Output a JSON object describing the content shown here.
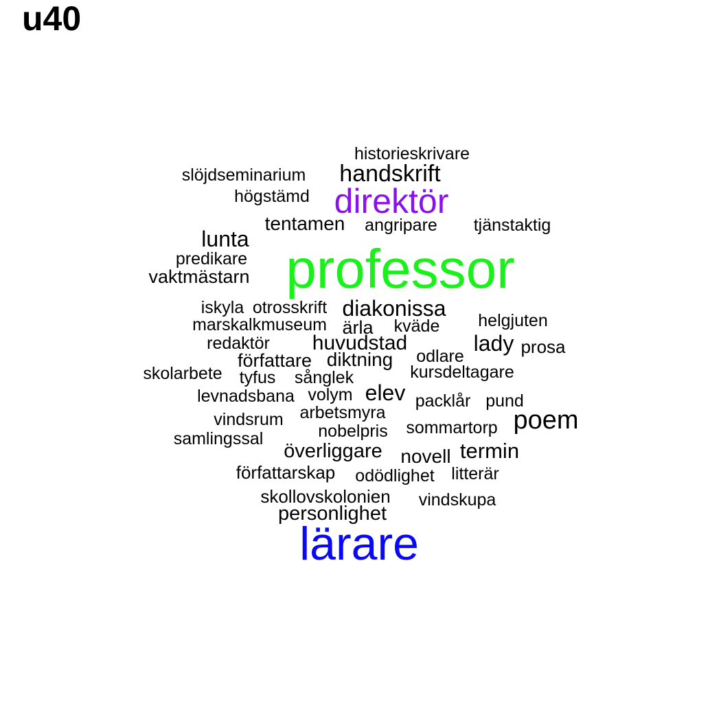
{
  "panel_label": "u40",
  "words": [
    {
      "text": "historieskrivare",
      "color": "#000000"
    },
    {
      "text": "slöjdseminarium",
      "color": "#000000"
    },
    {
      "text": "handskrift",
      "color": "#000000"
    },
    {
      "text": "högstämd",
      "color": "#000000"
    },
    {
      "text": "direktör",
      "color": "#8b10ee"
    },
    {
      "text": "tentamen",
      "color": "#000000"
    },
    {
      "text": "angripare",
      "color": "#000000"
    },
    {
      "text": "tjänstaktig",
      "color": "#000000"
    },
    {
      "text": "lunta",
      "color": "#000000"
    },
    {
      "text": "predikare",
      "color": "#000000"
    },
    {
      "text": "vaktmästarn",
      "color": "#000000"
    },
    {
      "text": "professor",
      "color": "#1af01a"
    },
    {
      "text": "iskyla",
      "color": "#000000"
    },
    {
      "text": "otrosskrift",
      "color": "#000000"
    },
    {
      "text": "diakonissa",
      "color": "#000000"
    },
    {
      "text": "marskalkmuseum",
      "color": "#000000"
    },
    {
      "text": "ärla",
      "color": "#000000"
    },
    {
      "text": "kväde",
      "color": "#000000"
    },
    {
      "text": "helgjuten",
      "color": "#000000"
    },
    {
      "text": "redaktör",
      "color": "#000000"
    },
    {
      "text": "huvudstad",
      "color": "#000000"
    },
    {
      "text": "lady",
      "color": "#000000"
    },
    {
      "text": "prosa",
      "color": "#000000"
    },
    {
      "text": "författare",
      "color": "#000000"
    },
    {
      "text": "diktning",
      "color": "#000000"
    },
    {
      "text": "odlare",
      "color": "#000000"
    },
    {
      "text": "skolarbete",
      "color": "#000000"
    },
    {
      "text": "tyfus",
      "color": "#000000"
    },
    {
      "text": "sånglek",
      "color": "#000000"
    },
    {
      "text": "kursdeltagare",
      "color": "#000000"
    },
    {
      "text": "levnadsbana",
      "color": "#000000"
    },
    {
      "text": "volym",
      "color": "#000000"
    },
    {
      "text": "elev",
      "color": "#000000"
    },
    {
      "text": "packlår",
      "color": "#000000"
    },
    {
      "text": "pund",
      "color": "#000000"
    },
    {
      "text": "arbetsmyra",
      "color": "#000000"
    },
    {
      "text": "vindsrum",
      "color": "#000000"
    },
    {
      "text": "poem",
      "color": "#000000"
    },
    {
      "text": "nobelpris",
      "color": "#000000"
    },
    {
      "text": "sommartorp",
      "color": "#000000"
    },
    {
      "text": "samlingssal",
      "color": "#000000"
    },
    {
      "text": "överliggare",
      "color": "#000000"
    },
    {
      "text": "novell",
      "color": "#000000"
    },
    {
      "text": "termin",
      "color": "#000000"
    },
    {
      "text": "författarskap",
      "color": "#000000"
    },
    {
      "text": "odödlighet",
      "color": "#000000"
    },
    {
      "text": "litterär",
      "color": "#000000"
    },
    {
      "text": "skollovskolonien",
      "color": "#000000"
    },
    {
      "text": "vindskupa",
      "color": "#000000"
    },
    {
      "text": "personlighet",
      "color": "#000000"
    },
    {
      "text": "lärare",
      "color": "#0a0af0"
    }
  ]
}
